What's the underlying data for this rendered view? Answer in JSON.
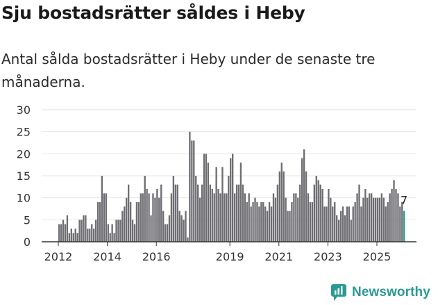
{
  "title": "Sju bostadsrätter såldes i Heby",
  "subtitle": "Antal sålda bostadsrätter i Heby under de senaste tre månaderna.",
  "brand": {
    "name": "Newsworthy",
    "color": "#2b9a93",
    "icon": "newsworthy-logo-icon"
  },
  "colors": {
    "bars": "#6e6d72",
    "highlight": "#2b9a93",
    "grid": "#e6e6e6",
    "axis": "#333333"
  },
  "chart_data": {
    "type": "bar",
    "title": "Sju bostadsrätter såldes i Heby",
    "xlabel": "",
    "ylabel": "",
    "ylim": [
      0,
      30
    ],
    "yticks": [
      0,
      5,
      10,
      15,
      20,
      25,
      30
    ],
    "xticks": [
      {
        "label": "2012",
        "x": 2012.0
      },
      {
        "label": "2014",
        "x": 2014.0
      },
      {
        "label": "2016",
        "x": 2016.0
      },
      {
        "label": "2019",
        "x": 2019.0
      },
      {
        "label": "2021",
        "x": 2021.0
      },
      {
        "label": "2023",
        "x": 2023.0
      },
      {
        "label": "2025",
        "x": 2025.0
      }
    ],
    "x_start": 2012.0,
    "x_step": 0.0833,
    "highlight_label": "7",
    "values": [
      4,
      4,
      5,
      4,
      6,
      2,
      3,
      2,
      3,
      2,
      5,
      5,
      6,
      6,
      3,
      3,
      4,
      3,
      5,
      9,
      9,
      15,
      11,
      11,
      4,
      2,
      4,
      2,
      5,
      5,
      5,
      7,
      8,
      10,
      13,
      9,
      5,
      4,
      9,
      9,
      11,
      11,
      15,
      12,
      11,
      6,
      11,
      10,
      12,
      10,
      13,
      7,
      4,
      4,
      6,
      11,
      15,
      13,
      13,
      7,
      6,
      5,
      7,
      1,
      25,
      23,
      23,
      15,
      13,
      10,
      13,
      20,
      20,
      18,
      13,
      12,
      11,
      17,
      12,
      11,
      17,
      11,
      11,
      15,
      19,
      20,
      11,
      13,
      13,
      18,
      13,
      11,
      9,
      11,
      8,
      9,
      10,
      9,
      8,
      9,
      9,
      8,
      7,
      9,
      8,
      11,
      10,
      13,
      16,
      18,
      16,
      10,
      7,
      7,
      9,
      11,
      11,
      10,
      13,
      19,
      21,
      16,
      11,
      9,
      9,
      13,
      15,
      14,
      13,
      12,
      8,
      8,
      12,
      10,
      8,
      9,
      6,
      5,
      7,
      8,
      6,
      8,
      8,
      5,
      8,
      9,
      11,
      13,
      8,
      10,
      12,
      10,
      11,
      11,
      10,
      10,
      10,
      10,
      11,
      10,
      8,
      9,
      11,
      12,
      14,
      12,
      11,
      8,
      9,
      7
    ]
  }
}
